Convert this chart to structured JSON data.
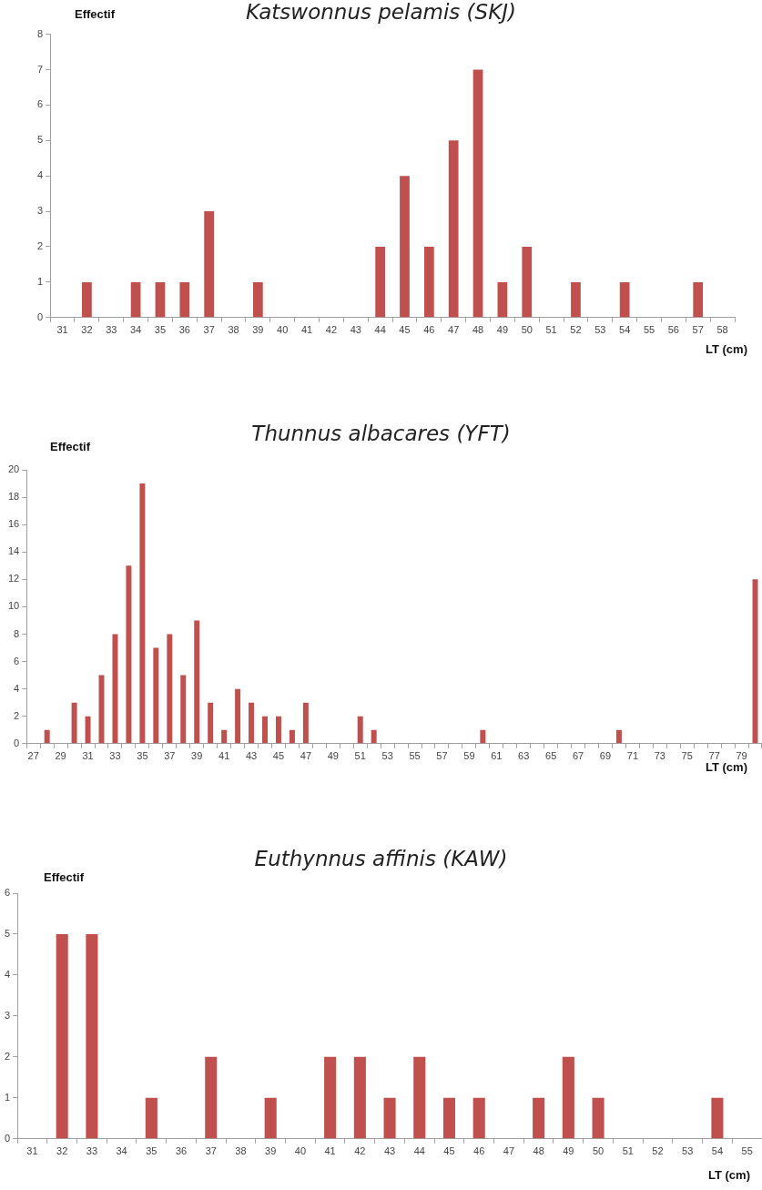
{
  "chart_data": [
    {
      "type": "bar",
      "title": "Katswonnus pelamis (SKJ)",
      "xlabel": "LT (cm)",
      "ylabel": "Effectif",
      "color": "#c0504d",
      "categories": [
        "31",
        "32",
        "33",
        "34",
        "35",
        "36",
        "37",
        "38",
        "39",
        "40",
        "41",
        "42",
        "43",
        "44",
        "45",
        "46",
        "47",
        "48",
        "49",
        "50",
        "51",
        "52",
        "53",
        "54",
        "55",
        "56",
        "57",
        "58"
      ],
      "values": [
        0,
        1,
        0,
        1,
        1,
        1,
        3,
        0,
        1,
        0,
        0,
        0,
        0,
        2,
        4,
        2,
        5,
        7,
        1,
        2,
        0,
        1,
        0,
        1,
        0,
        0,
        1,
        0
      ],
      "ylim": [
        0,
        8
      ],
      "yticks": [
        0,
        1,
        2,
        3,
        4,
        5,
        6,
        7,
        8
      ],
      "grid": false,
      "legend": false
    },
    {
      "type": "bar",
      "title": "Thunnus albacares (YFT)",
      "xlabel": "LT (cm)",
      "ylabel": "Effectif",
      "color": "#c0504d",
      "categories": [
        "27",
        null,
        "29",
        null,
        "31",
        null,
        "33",
        null,
        "35",
        null,
        "37",
        null,
        "39",
        null,
        "41",
        null,
        "43",
        null,
        "45",
        null,
        "47",
        null,
        "49",
        null,
        "51",
        null,
        "53",
        null,
        "55",
        null,
        "57",
        null,
        "59",
        null,
        "61",
        null,
        "63",
        null,
        "65",
        null,
        "67",
        null,
        "69",
        null,
        "71",
        null,
        "73",
        null,
        "75",
        null,
        "77",
        null,
        "79",
        null
      ],
      "values": [
        0,
        1,
        0,
        3,
        2,
        5,
        8,
        13,
        19,
        7,
        8,
        5,
        9,
        3,
        1,
        4,
        3,
        2,
        2,
        1,
        3,
        0,
        0,
        0,
        2,
        1,
        0,
        0,
        0,
        0,
        0,
        0,
        0,
        1,
        0,
        0,
        0,
        0,
        0,
        0,
        0,
        0,
        0,
        1,
        0,
        0,
        0,
        0,
        0,
        0,
        0,
        0,
        0,
        12
      ],
      "ylim": [
        0,
        20
      ],
      "yticks": [
        0,
        2,
        4,
        6,
        8,
        10,
        12,
        14,
        16,
        18,
        20
      ],
      "grid": false,
      "legend": false
    },
    {
      "type": "bar",
      "title": "Euthynnus affinis (KAW)",
      "xlabel": "LT (cm)",
      "ylabel": "Effectif",
      "color": "#c0504d",
      "categories": [
        "31",
        "32",
        "33",
        "34",
        "35",
        "36",
        "37",
        "38",
        "39",
        "40",
        "41",
        "42",
        "43",
        "44",
        "45",
        "46",
        "47",
        "48",
        "49",
        "50",
        "51",
        "52",
        "53",
        "54",
        "55"
      ],
      "values": [
        0,
        5,
        5,
        0,
        1,
        0,
        2,
        0,
        1,
        0,
        2,
        2,
        1,
        2,
        1,
        1,
        0,
        1,
        2,
        1,
        0,
        0,
        0,
        1,
        0
      ],
      "ylim": [
        0,
        6
      ],
      "yticks": [
        0,
        1,
        2,
        3,
        4,
        5,
        6
      ],
      "grid": false,
      "legend": false
    }
  ]
}
